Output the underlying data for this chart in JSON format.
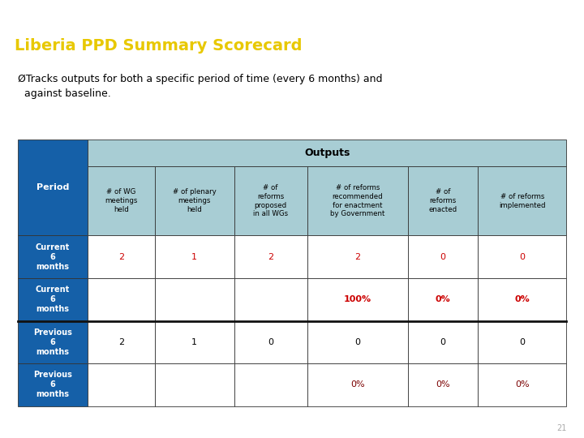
{
  "title": "Liberia PPD Summary Scorecard",
  "title_color": "#E8C800",
  "title_bg_color": "#006070",
  "title_bar_top_strip": "#000000",
  "subtitle": "ØTracks outputs for both a specific period of time (every 6 months) and\n  against baseline.",
  "page_bg": "#FFFFFF",
  "bottom_bar_color": "#111111",
  "page_num": "21",
  "header_bg": "#A8CDD4",
  "period_bg": "#1560A8",
  "period_color": "#FFFFFF",
  "outputs_header": "Outputs",
  "col_headers": [
    "# of WG\nmeetings\nheld",
    "# of plenary\nmeetings\nheld",
    "# of\nreforms\nproposed\nin all WGs",
    "# of reforms\nrecommended\nfor enactment\nby Government",
    "# of\nreforms\nenacted",
    "# of reforms\nimplemented"
  ],
  "row_labels": [
    "Current\n6\nmonths",
    "Current\n6\nmonths",
    "Previous\n6\nmonths",
    "Previous\n6\nmonths"
  ],
  "table_data": [
    [
      "2",
      "1",
      "2",
      "2",
      "0",
      "0"
    ],
    [
      "",
      "",
      "",
      "100%",
      "0%",
      "0%"
    ],
    [
      "2",
      "1",
      "0",
      "0",
      "0",
      "0"
    ],
    [
      "",
      "",
      "",
      "0%",
      "0%",
      "0%"
    ]
  ],
  "cell_colors": [
    [
      "#CC0000",
      "#CC0000",
      "#CC0000",
      "#CC0000",
      "#CC0000",
      "#CC0000"
    ],
    [
      "#000000",
      "#000000",
      "#000000",
      "#CC0000",
      "#CC0000",
      "#CC0000"
    ],
    [
      "#000000",
      "#000000",
      "#000000",
      "#000000",
      "#000000",
      "#000000"
    ],
    [
      "#000000",
      "#000000",
      "#000000",
      "#7B0000",
      "#7B0000",
      "#7B0000"
    ]
  ],
  "cell_bold": [
    [
      false,
      false,
      false,
      false,
      false,
      false
    ],
    [
      false,
      false,
      false,
      true,
      true,
      true
    ],
    [
      false,
      false,
      false,
      false,
      false,
      false
    ],
    [
      false,
      false,
      false,
      false,
      false,
      false
    ]
  ]
}
